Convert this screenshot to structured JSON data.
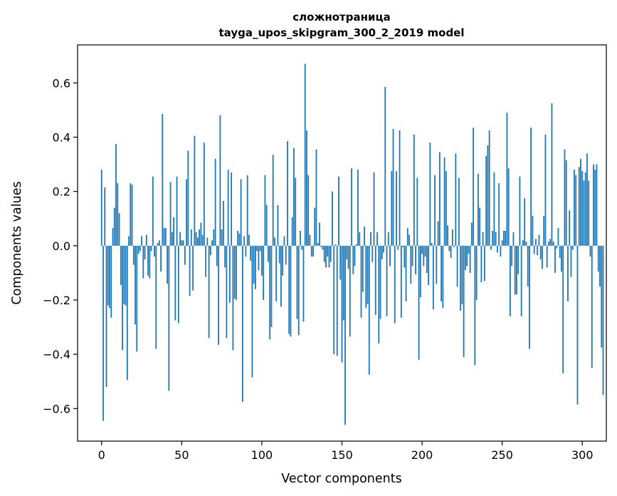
{
  "chart_data": {
    "type": "bar",
    "title": "сложнотраница",
    "subtitle": "tayga_upos_skipgram_300_2_2019 model",
    "xlabel": "Vector components",
    "ylabel": "Components values",
    "xlim": [
      -15,
      315
    ],
    "ylim": [
      -0.72,
      0.74
    ],
    "xticks": [
      0,
      50,
      100,
      150,
      200,
      250,
      300
    ],
    "xtick_labels": [
      "0",
      "50",
      "100",
      "150",
      "200",
      "250",
      "300"
    ],
    "yticks": [
      -0.6,
      -0.4,
      -0.2,
      0.0,
      0.2,
      0.4,
      0.6
    ],
    "ytick_labels": [
      "−0.6",
      "−0.4",
      "−0.2",
      "0.0",
      "0.2",
      "0.4",
      "0.6"
    ],
    "bar_color": "#1f77b4",
    "grid": false,
    "values": [
      0.28,
      -0.645,
      0.215,
      -0.52,
      -0.22,
      -0.23,
      -0.265,
      0.065,
      0.14,
      0.375,
      0.23,
      0.12,
      -0.145,
      -0.385,
      -0.215,
      -0.22,
      -0.495,
      0.035,
      0.23,
      0.225,
      -0.07,
      -0.29,
      -0.39,
      -0.03,
      -0.02,
      0.035,
      -0.12,
      -0.05,
      0.04,
      -0.11,
      -0.12,
      -0.02,
      0.255,
      -0.04,
      -0.38,
      0.01,
      0.02,
      -0.095,
      0.485,
      0.065,
      0.065,
      -0.14,
      -0.535,
      0.235,
      0.05,
      0.105,
      -0.275,
      0.255,
      -0.285,
      0.05,
      0.02,
      0.02,
      -0.07,
      0.245,
      0.35,
      -0.185,
      0.06,
      -0.165,
      0.405,
      0.05,
      0.03,
      0.06,
      0.085,
      0.04,
      0.38,
      -0.115,
      0.03,
      -0.34,
      -0.035,
      0.02,
      0.06,
      0.32,
      -0.075,
      -0.365,
      0.48,
      0.06,
      0.165,
      -0.08,
      -0.34,
      0.28,
      -0.21,
      0.27,
      -0.385,
      -0.195,
      -0.2,
      0.055,
      0.045,
      0.245,
      -0.575,
      0.035,
      -0.04,
      0.26,
      0.04,
      -0.055,
      -0.485,
      -0.14,
      -0.16,
      -0.02,
      -0.09,
      -0.02,
      -0.11,
      -0.2,
      0.26,
      0.15,
      -0.06,
      -0.345,
      -0.3,
      0.335,
      0.03,
      -0.205,
      0.15,
      -0.065,
      -0.225,
      -0.11,
      0.035,
      -0.07,
      0.385,
      -0.325,
      -0.335,
      0.105,
      0.36,
      0.25,
      -0.27,
      -0.33,
      0.055,
      -0.015,
      -0.28,
      0.67,
      0.425,
      0.26,
      0.04,
      -0.04,
      -0.04,
      0.14,
      0.355,
      0.01,
      0.085,
      -0.005,
      -0.015,
      -0.06,
      -0.08,
      -0.04,
      -0.08,
      -0.06,
      0.2,
      -0.4,
      0.005,
      -0.405,
      0.255,
      -0.125,
      -0.43,
      -0.275,
      -0.66,
      -0.05,
      -0.085,
      -0.335,
      0.285,
      -0.105,
      -0.075,
      0.005,
      0.28,
      0.05,
      -0.265,
      -0.17,
      0.07,
      -0.23,
      -0.215,
      -0.475,
      0.05,
      -0.06,
      0.27,
      -0.255,
      0.05,
      -0.36,
      -0.27,
      -0.05,
      -0.025,
      0.585,
      -0.26,
      0.05,
      -0.075,
      0.275,
      0.43,
      -0.285,
      0.275,
      -0.015,
      0.425,
      -0.265,
      -0.005,
      -0.08,
      -0.205,
      0.065,
      0.04,
      -0.14,
      -0.075,
      0.41,
      -0.105,
      0.25,
      -0.42,
      -0.19,
      -0.03,
      -0.075,
      -0.04,
      -0.1,
      -0.145,
      0.38,
      0.01,
      -0.235,
      0.26,
      -0.14,
      0.09,
      0.345,
      -0.205,
      -0.23,
      0.325,
      0.275,
      0.075,
      -0.02,
      -0.045,
      0.06,
      -0.005,
      0.34,
      -0.15,
      0.25,
      -0.24,
      -0.215,
      -0.41,
      -0.09,
      -0.075,
      -0.03,
      -0.1,
      0.085,
      0.435,
      -0.44,
      -0.2,
      0.265,
      0.14,
      -0.135,
      0.05,
      -0.13,
      0.33,
      0.37,
      0.425,
      -0.015,
      0.055,
      0.27,
      0.05,
      -0.025,
      0.23,
      -0.04,
      0.02,
      0.055,
      0.055,
      0.49,
      0.285,
      -0.26,
      -0.075,
      0.05,
      -0.18,
      -0.18,
      -0.105,
      0.255,
      -0.26,
      0.02,
      0.175,
      0.015,
      -0.15,
      -0.38,
      0.435,
      0.11,
      -0.03,
      0.025,
      -0.035,
      0.04,
      -0.05,
      -0.085,
      0.11,
      0.41,
      -0.08,
      0.015,
      0.025,
      0.525,
      0.015,
      -0.1,
      -0.01,
      0.065,
      -0.045,
      -0.095,
      -0.47,
      0.355,
      0.315,
      -0.205,
      0.13,
      -0.115,
      -0.015,
      0.28,
      0.26,
      -0.585,
      0.29,
      0.32,
      0.275,
      0.24,
      0.27,
      0.34,
      0.24,
      -0.04,
      -0.45,
      0.3,
      0.28,
      0.3,
      -0.095,
      -0.15,
      -0.375,
      -0.55
    ]
  }
}
